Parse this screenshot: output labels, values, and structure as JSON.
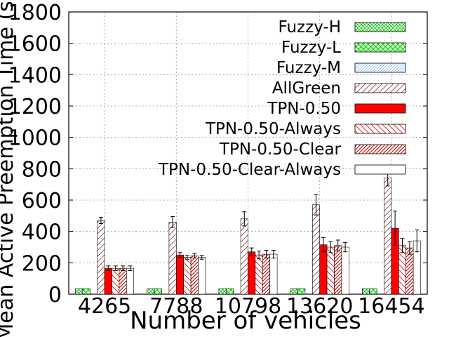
{
  "chart_data": {
    "type": "bar",
    "xlabel": "Number of vehicles",
    "ylabel": "Mean Active Preemption Time (s)",
    "categories": [
      "4265",
      "7788",
      "10798",
      "13620",
      "16454"
    ],
    "ylim": [
      0,
      1800
    ],
    "yticks": [
      "0",
      "200",
      "400",
      "600",
      "800",
      "1000",
      "1200",
      "1400",
      "1600",
      "1800"
    ],
    "grid": "dotted at x category centers and y ticks",
    "legend_position": "top-right",
    "series": [
      {
        "name": "Fuzzy-H",
        "values": [
          35,
          35,
          35,
          35,
          35
        ],
        "errors": [
          0,
          0,
          0,
          0,
          0
        ],
        "color": "#00aa00",
        "pattern": "crosshatch-fine"
      },
      {
        "name": "Fuzzy-L",
        "values": [
          35,
          35,
          35,
          35,
          35
        ],
        "errors": [
          0,
          0,
          0,
          0,
          0
        ],
        "color": "#00cc00",
        "pattern": "crosshatch"
      },
      {
        "name": "Fuzzy-M",
        "values": [
          0,
          0,
          0,
          0,
          0
        ],
        "errors": [
          0,
          0,
          0,
          0,
          0
        ],
        "color": "#5599ff",
        "pattern": "diagonal-fine"
      },
      {
        "name": "AllGreen",
        "values": [
          470,
          460,
          480,
          570,
          740
        ],
        "errors": [
          20,
          35,
          45,
          65,
          50
        ],
        "color": "#8b3a3a",
        "pattern": "diagonal"
      },
      {
        "name": "TPN-0.50",
        "values": [
          165,
          250,
          270,
          315,
          420
        ],
        "errors": [
          15,
          15,
          25,
          45,
          110
        ],
        "color": "#ff0000",
        "pattern": "solid"
      },
      {
        "name": "TPN-0.50-Always",
        "values": [
          165,
          235,
          250,
          300,
          310
        ],
        "errors": [
          15,
          12,
          25,
          35,
          45
        ],
        "color": "#ff0000",
        "pattern": "backslash"
      },
      {
        "name": "TPN-0.50-Clear",
        "values": [
          165,
          245,
          255,
          310,
          295
        ],
        "errors": [
          15,
          15,
          25,
          35,
          40
        ],
        "color": "#cc0000",
        "pattern": "diagonal-dense"
      },
      {
        "name": "TPN-0.50-Clear-Always",
        "values": [
          165,
          235,
          255,
          300,
          340
        ],
        "errors": [
          15,
          12,
          25,
          30,
          70
        ],
        "color": "#000000",
        "pattern": "empty"
      }
    ]
  }
}
